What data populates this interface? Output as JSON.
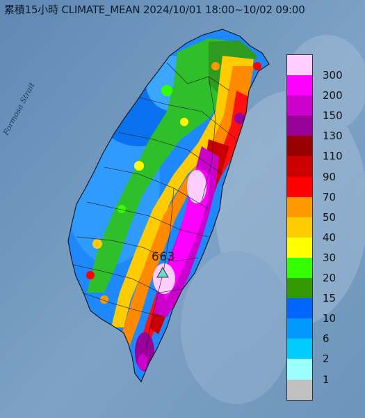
{
  "title": "累積15小時 CLIMATE_MEAN 2024/10/01 18:00~10/02 09:00",
  "strait_label": "Formosa Strait",
  "peak": {
    "value": "663"
  },
  "legend": {
    "items": [
      {
        "label": "300",
        "color": "#ffccff"
      },
      {
        "label": "200",
        "color": "#ff00ff"
      },
      {
        "label": "150",
        "color": "#cc00cc"
      },
      {
        "label": "130",
        "color": "#990099"
      },
      {
        "label": "110",
        "color": "#990000"
      },
      {
        "label": "90",
        "color": "#cc0000"
      },
      {
        "label": "70",
        "color": "#ff0000"
      },
      {
        "label": "50",
        "color": "#ff9900"
      },
      {
        "label": "40",
        "color": "#ffcc00"
      },
      {
        "label": "30",
        "color": "#ffff00"
      },
      {
        "label": "20",
        "color": "#33ff00"
      },
      {
        "label": "15",
        "color": "#339900"
      },
      {
        "label": "10",
        "color": "#0066ff"
      },
      {
        "label": "6",
        "color": "#0099ff"
      },
      {
        "label": "2",
        "color": "#00ccff"
      },
      {
        "label": "1",
        "color": "#99ffff"
      },
      {
        "label": "",
        "color": "#c0c0c0"
      }
    ]
  },
  "colors": {
    "sea": "#6f93b8",
    "island_outline": "#1a1a1a",
    "peak_marker": "#66ddcc"
  }
}
